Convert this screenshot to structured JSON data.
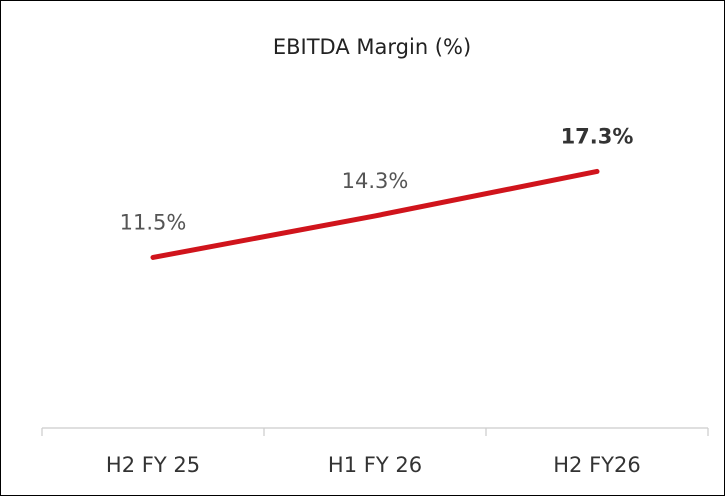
{
  "chart_data": {
    "type": "line",
    "title": "EBITDA Margin (%)",
    "categories": [
      "H2 FY 25",
      "H1 FY 26",
      "H2 FY26"
    ],
    "series": [
      {
        "name": null,
        "color": "#d0141c",
        "values": [
          11.5,
          14.3,
          17.3
        ],
        "value_labels": [
          "11.5%",
          "14.3%",
          "17.3%"
        ]
      }
    ]
  }
}
